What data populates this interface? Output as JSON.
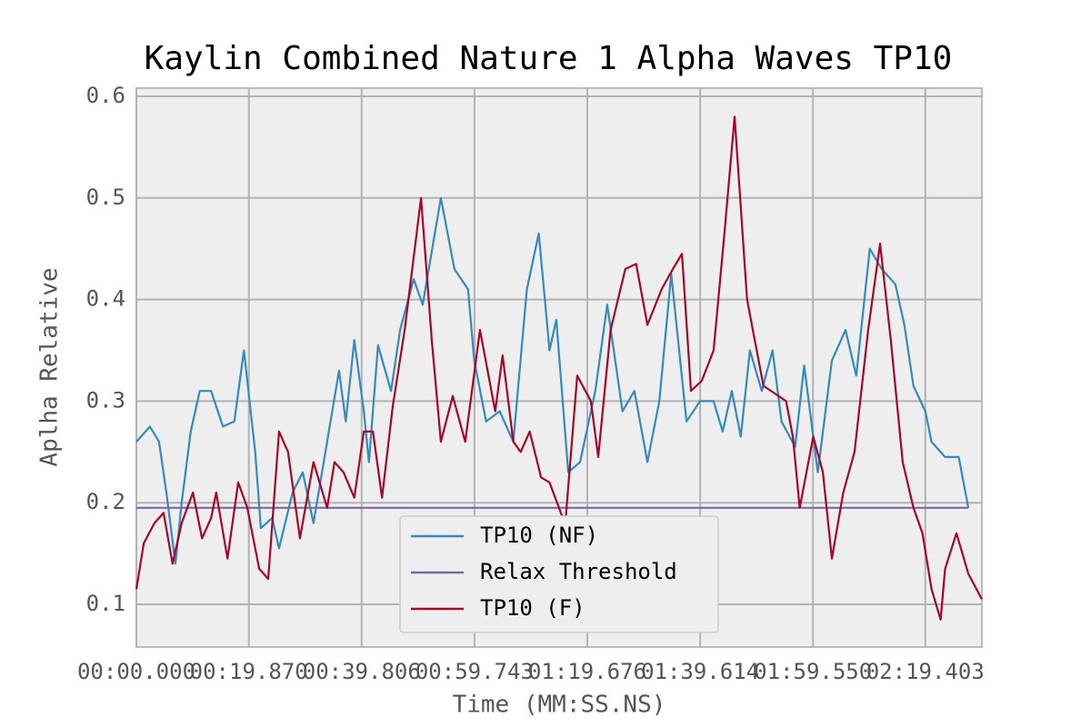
{
  "chart_data": {
    "type": "line",
    "title": "Kaylin Combined Nature 1 Alpha Waves TP10",
    "x_label": "Time (MM:SS.NS)",
    "y_label": "Aplha Relative",
    "xlim": [
      0,
      149.4
    ],
    "ylim": [
      0.058,
      0.608
    ],
    "xticks": [
      {
        "value": 0,
        "label": "00:00.000"
      },
      {
        "value": 19.87,
        "label": "00:19.870"
      },
      {
        "value": 39.806,
        "label": "00:39.806"
      },
      {
        "value": 59.743,
        "label": "00:59.743"
      },
      {
        "value": 79.676,
        "label": "01:19.676"
      },
      {
        "value": 99.614,
        "label": "01:39.614"
      },
      {
        "value": 119.55,
        "label": "01:59.550"
      },
      {
        "value": 139.403,
        "label": "02:19.403"
      }
    ],
    "yticks": [
      0.1,
      0.2,
      0.3,
      0.4,
      0.5,
      0.6
    ],
    "grid": true,
    "legend": "lower center",
    "series": [
      {
        "name": "TP10 (NF)",
        "color": "#348abd",
        "x": [
          0,
          2.4,
          4,
          5.3,
          6.9,
          8,
          9.6,
          11.2,
          13.2,
          15.3,
          17.3,
          19,
          21,
          22,
          24,
          25.2,
          27.6,
          29.4,
          31.3,
          33.7,
          35.8,
          37,
          38.5,
          40.2,
          41.1,
          42.7,
          45,
          46.6,
          49,
          50.6,
          53.8,
          56.2,
          58.6,
          59.7,
          61.8,
          64.2,
          66.6,
          69,
          71.1,
          73,
          74.2,
          76.3,
          78.4,
          81.1,
          83.2,
          85.9,
          88,
          90.3,
          92.4,
          94.5,
          97.2,
          99.6,
          102,
          103.6,
          105.2,
          106.8,
          108.4,
          110.5,
          112.4,
          114,
          116.4,
          118,
          120.4,
          122.9,
          125.3,
          127.2,
          129.6,
          131.7,
          134.1,
          135.7,
          137.3,
          139.4,
          140.5,
          142.9,
          145.3,
          147
        ],
        "values": [
          0.26,
          0.275,
          0.26,
          0.21,
          0.14,
          0.2,
          0.27,
          0.31,
          0.31,
          0.275,
          0.28,
          0.35,
          0.25,
          0.175,
          0.185,
          0.155,
          0.21,
          0.23,
          0.18,
          0.26,
          0.33,
          0.28,
          0.36,
          0.29,
          0.24,
          0.355,
          0.31,
          0.37,
          0.42,
          0.395,
          0.5,
          0.43,
          0.41,
          0.34,
          0.28,
          0.29,
          0.26,
          0.41,
          0.465,
          0.35,
          0.38,
          0.23,
          0.24,
          0.31,
          0.395,
          0.29,
          0.31,
          0.24,
          0.3,
          0.425,
          0.28,
          0.3,
          0.3,
          0.27,
          0.31,
          0.265,
          0.35,
          0.31,
          0.35,
          0.28,
          0.255,
          0.335,
          0.23,
          0.34,
          0.37,
          0.325,
          0.45,
          0.43,
          0.415,
          0.375,
          0.315,
          0.29,
          0.26,
          0.245,
          0.245,
          0.195
        ]
      },
      {
        "name": "Relax Threshold",
        "color": "#7a68a6",
        "x": [
          0,
          147
        ],
        "values": [
          0.195,
          0.195
        ]
      },
      {
        "name": "TP10 (F)",
        "color": "#a60628",
        "x": [
          0,
          1.3,
          3.2,
          4.8,
          6.4,
          8,
          10,
          11.6,
          13.2,
          14.1,
          16.1,
          18,
          19.6,
          21.7,
          23.3,
          25.2,
          26.8,
          28.9,
          31.3,
          33.7,
          35,
          36.6,
          38.5,
          40.2,
          41.8,
          43.4,
          45.3,
          47.4,
          50.3,
          52.2,
          53.8,
          55.9,
          58.1,
          60.7,
          63.4,
          64.7,
          66.6,
          67.9,
          69.5,
          71.5,
          73,
          75,
          75.8,
          77.9,
          80.3,
          81.6,
          83.8,
          86.4,
          88.3,
          90.3,
          92.8,
          94.8,
          96.4,
          98,
          99.9,
          102,
          103.9,
          105.7,
          107.9,
          110.8,
          114.8,
          116,
          117.2,
          119.6,
          121.3,
          122.9,
          124.9,
          126.9,
          129.3,
          131.4,
          133.3,
          135.4,
          137.3,
          138.9,
          140.5,
          142.1,
          142.9,
          144.9,
          147,
          149.4
        ],
        "values": [
          0.115,
          0.16,
          0.18,
          0.19,
          0.14,
          0.18,
          0.21,
          0.165,
          0.185,
          0.21,
          0.145,
          0.22,
          0.195,
          0.135,
          0.125,
          0.27,
          0.25,
          0.165,
          0.24,
          0.195,
          0.24,
          0.23,
          0.205,
          0.27,
          0.27,
          0.205,
          0.295,
          0.37,
          0.5,
          0.36,
          0.26,
          0.305,
          0.26,
          0.37,
          0.29,
          0.345,
          0.26,
          0.25,
          0.27,
          0.225,
          0.22,
          0.19,
          0.18,
          0.325,
          0.3,
          0.245,
          0.37,
          0.43,
          0.435,
          0.375,
          0.41,
          0.43,
          0.445,
          0.31,
          0.32,
          0.35,
          0.465,
          0.58,
          0.4,
          0.315,
          0.3,
          0.265,
          0.195,
          0.265,
          0.23,
          0.145,
          0.21,
          0.25,
          0.37,
          0.455,
          0.36,
          0.24,
          0.195,
          0.17,
          0.115,
          0.085,
          0.135,
          0.17,
          0.13,
          0.105
        ]
      }
    ]
  }
}
